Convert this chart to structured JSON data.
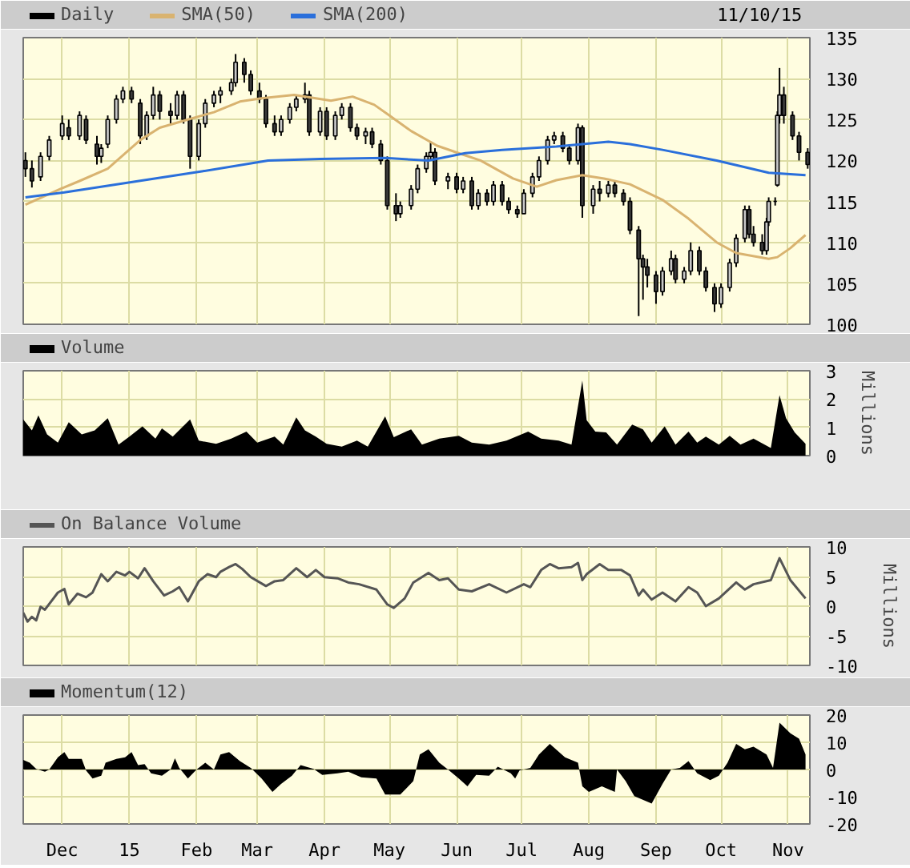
{
  "chart_data": [
    {
      "type": "candlestick",
      "legend": "top left",
      "annotations": [
        "11/10/15"
      ],
      "grid": true,
      "tick_labels": "y",
      "xlim": [
        "2014-11-13",
        "2015-11-11"
      ],
      "xticks": [
        {
          "value": "2014-12-01",
          "label": null
        },
        {
          "value": "2015-01-01",
          "label": null
        },
        {
          "value": "2015-02-01",
          "label": null
        },
        {
          "value": "2015-03-01",
          "label": null
        },
        {
          "value": "2015-04-01",
          "label": null
        },
        {
          "value": "2015-05-01",
          "label": null
        },
        {
          "value": "2015-06-01",
          "label": null
        },
        {
          "value": "2015-07-01",
          "label": null
        },
        {
          "value": "2015-08-01",
          "label": null
        },
        {
          "value": "2015-09-01",
          "label": null
        },
        {
          "value": "2015-10-01",
          "label": null
        },
        {
          "value": "2015-11-01",
          "label": null
        }
      ],
      "ylim": [
        100,
        135
      ],
      "yticks": [
        100,
        105,
        110,
        115,
        120,
        125,
        130,
        135
      ],
      "series": [
        {
          "name": "Daily",
          "type": "candlestick",
          "color": "#000000",
          "x": [
            "2014-11-14",
            "2014-11-17",
            "2014-11-21",
            "2014-11-25",
            "2014-12-01",
            "2014-12-04",
            "2014-12-09",
            "2014-12-12",
            "2014-12-17",
            "2014-12-19",
            "2014-12-22",
            "2014-12-26",
            "2014-12-29",
            "2015-01-02",
            "2015-01-06",
            "2015-01-09",
            "2015-01-12",
            "2015-01-15",
            "2015-01-20",
            "2015-01-23",
            "2015-01-26",
            "2015-01-29",
            "2015-02-02",
            "2015-02-05",
            "2015-02-09",
            "2015-02-12",
            "2015-02-17",
            "2015-02-19",
            "2015-02-23",
            "2015-02-26",
            "2015-03-02",
            "2015-03-05",
            "2015-03-09",
            "2015-03-12",
            "2015-03-16",
            "2015-03-19",
            "2015-03-23",
            "2015-03-25",
            "2015-03-30",
            "2015-04-02",
            "2015-04-06",
            "2015-04-09",
            "2015-04-13",
            "2015-04-16",
            "2015-04-20",
            "2015-04-23",
            "2015-04-27",
            "2015-04-30",
            "2015-05-04",
            "2015-05-06",
            "2015-05-11",
            "2015-05-14",
            "2015-05-18",
            "2015-05-20",
            "2015-05-22",
            "2015-05-28",
            "2015-06-01",
            "2015-06-04",
            "2015-06-08",
            "2015-06-11",
            "2015-06-15",
            "2015-06-18",
            "2015-06-22",
            "2015-06-25",
            "2015-06-29",
            "2015-07-02",
            "2015-07-06",
            "2015-07-09",
            "2015-07-13",
            "2015-07-16",
            "2015-07-20",
            "2015-07-23",
            "2015-07-27",
            "2015-07-29",
            "2015-08-03",
            "2015-08-06",
            "2015-08-10",
            "2015-08-13",
            "2015-08-17",
            "2015-08-20",
            "2015-08-24",
            "2015-08-26",
            "2015-08-28",
            "2015-09-01",
            "2015-09-04",
            "2015-09-08",
            "2015-09-10",
            "2015-09-14",
            "2015-09-17",
            "2015-09-21",
            "2015-09-24",
            "2015-09-28",
            "2015-10-01",
            "2015-10-05",
            "2015-10-08",
            "2015-10-12",
            "2015-10-14",
            "2015-10-16",
            "2015-10-20",
            "2015-10-22",
            "2015-10-23",
            "2015-10-26",
            "2015-10-27",
            "2015-10-28",
            "2015-10-30",
            "2015-11-03",
            "2015-11-06",
            "2015-11-10"
          ],
          "ohlc": [
            [
              120,
              121,
              118,
              119
            ],
            [
              119,
              120,
              116.7,
              117.5
            ],
            [
              118,
              121,
              117.5,
              120.5
            ],
            [
              120.5,
              123,
              120,
              122.5
            ],
            [
              123,
              125.5,
              122.5,
              124.5
            ],
            [
              124,
              125,
              122.5,
              123
            ],
            [
              123,
              126,
              122.5,
              125.5
            ],
            [
              125,
              125.5,
              122,
              122.5
            ],
            [
              122,
              123,
              119.5,
              120.5
            ],
            [
              120.5,
              122,
              119.7,
              121.5
            ],
            [
              122,
              125.5,
              121.5,
              125
            ],
            [
              125,
              128,
              124.5,
              127.5
            ],
            [
              127.5,
              129,
              127,
              128.5
            ],
            [
              128.5,
              129,
              127,
              127.5
            ],
            [
              127,
              127.5,
              122,
              123
            ],
            [
              123,
              126,
              122.5,
              125.5
            ],
            [
              125.5,
              129,
              125,
              128
            ],
            [
              128,
              128.5,
              125,
              126
            ],
            [
              126,
              127,
              124.5,
              125.5
            ],
            [
              125.5,
              128.5,
              125,
              128
            ],
            [
              128,
              128.5,
              124.5,
              125
            ],
            [
              125,
              125.5,
              119,
              120.5
            ],
            [
              120.5,
              125,
              120,
              124.5
            ],
            [
              124.5,
              127.5,
              124,
              127
            ],
            [
              127,
              128.5,
              126.5,
              128
            ],
            [
              128,
              129,
              127,
              128.5
            ],
            [
              128.5,
              130,
              128,
              129.5
            ],
            [
              129.5,
              133,
              129,
              132
            ],
            [
              132,
              132.5,
              129.5,
              130.5
            ],
            [
              130.5,
              131,
              128,
              128.5
            ],
            [
              128.5,
              129.5,
              127,
              127.5
            ],
            [
              127.5,
              128,
              124,
              124.5
            ],
            [
              124.5,
              125.5,
              123,
              123.5
            ],
            [
              123.5,
              125.5,
              123,
              125
            ],
            [
              125,
              127,
              124.5,
              126.5
            ],
            [
              126.5,
              128,
              126,
              127.5
            ],
            [
              127.5,
              129.5,
              127,
              128
            ],
            [
              128,
              128.5,
              123,
              123.5
            ],
            [
              123.5,
              126.5,
              123,
              126
            ],
            [
              126,
              126.5,
              122.5,
              123
            ],
            [
              123,
              126,
              122.5,
              125.5
            ],
            [
              125.5,
              127,
              125,
              126.5
            ],
            [
              126.5,
              127,
              123.5,
              124
            ],
            [
              124,
              124.5,
              122.5,
              123
            ],
            [
              123,
              124,
              122,
              123.5
            ],
            [
              123.5,
              124,
              121.5,
              122
            ],
            [
              122,
              122.5,
              119.5,
              120
            ],
            [
              120,
              120.5,
              114,
              114.5
            ],
            [
              114.5,
              116,
              112.6,
              113.5
            ],
            [
              113.5,
              115,
              113,
              114.5
            ],
            [
              114.5,
              117,
              114,
              116.5
            ],
            [
              116.5,
              119.5,
              116,
              119
            ],
            [
              119,
              121,
              118.5,
              120.5
            ],
            [
              120.5,
              122.3,
              120,
              121
            ],
            [
              121,
              121.5,
              117,
              117.5
            ],
            [
              117.5,
              118.5,
              116.5,
              118
            ],
            [
              118,
              118.5,
              116,
              116.5
            ],
            [
              116.5,
              118,
              116,
              117.5
            ],
            [
              117.5,
              118,
              114,
              114.5
            ],
            [
              114.5,
              116.5,
              114,
              116
            ],
            [
              116,
              116.5,
              114.5,
              115
            ],
            [
              115,
              117.5,
              114.5,
              117
            ],
            [
              117,
              117.5,
              114.5,
              115
            ],
            [
              115,
              115.5,
              113.5,
              114
            ],
            [
              114,
              114.5,
              113,
              113.5
            ],
            [
              113.5,
              116.5,
              113.5,
              116
            ],
            [
              116,
              118.5,
              115.5,
              118
            ],
            [
              118,
              120.5,
              117.5,
              120
            ],
            [
              120,
              123,
              119.5,
              122.5
            ],
            [
              122.5,
              123.5,
              122,
              123
            ],
            [
              123,
              123.5,
              121,
              121.5
            ],
            [
              121.5,
              122,
              119.5,
              120
            ],
            [
              120,
              124.5,
              119.5,
              124
            ],
            [
              124,
              124.3,
              113,
              114.5
            ],
            [
              114.5,
              117,
              113.5,
              116.5
            ],
            [
              116.5,
              117.5,
              115,
              116
            ],
            [
              116,
              117.5,
              115.5,
              117
            ],
            [
              117,
              117.5,
              115.5,
              116
            ],
            [
              116,
              116.5,
              114.5,
              115
            ],
            [
              115,
              115.5,
              111,
              111.5
            ],
            [
              111.5,
              112,
              101,
              108
            ],
            [
              108,
              108.5,
              103,
              107
            ],
            [
              107,
              108,
              104.5,
              106
            ],
            [
              106,
              106.5,
              102.5,
              104
            ],
            [
              104,
              107,
              103.5,
              106.5
            ],
            [
              106.5,
              109,
              106,
              108
            ],
            [
              108,
              108.5,
              105,
              105.5
            ],
            [
              105.5,
              107,
              105,
              106.5
            ],
            [
              106.5,
              110,
              106,
              109
            ],
            [
              109,
              109.5,
              106,
              106.5
            ],
            [
              106.5,
              107,
              104,
              104.5
            ],
            [
              104.5,
              105,
              101.5,
              102.5
            ],
            [
              102.5,
              105,
              102,
              104.5
            ],
            [
              104.5,
              108,
              104,
              107.5
            ],
            [
              107.5,
              111,
              107,
              110.5
            ],
            [
              110.5,
              114.5,
              110,
              114
            ],
            [
              114,
              114.5,
              110.5,
              111
            ],
            [
              111,
              112,
              109.5,
              110
            ],
            [
              110,
              111,
              108.5,
              109
            ],
            [
              109,
              113,
              108.5,
              112.5
            ],
            [
              112.5,
              115.5,
              112,
              115
            ],
            [
              115,
              115.5,
              114.5,
              115
            ],
            [
              117,
              126,
              116.8,
              125.5
            ],
            [
              125.5,
              131.3,
              124.5,
              128
            ],
            [
              128,
              129,
              124.5,
              125.5
            ],
            [
              125.5,
              126,
              122.5,
              123
            ],
            [
              123,
              123.5,
              120,
              121
            ],
            [
              121,
              121.5,
              119,
              119.5
            ]
          ]
        },
        {
          "name": "SMA(50)",
          "type": "line",
          "color": "#d9b370",
          "x": [
            "2014-11-14",
            "2014-11-30",
            "2014-12-09",
            "2014-12-22",
            "2015-01-06",
            "2015-01-15",
            "2015-01-28",
            "2015-02-09",
            "2015-02-21",
            "2015-03-03",
            "2015-03-18",
            "2015-04-04",
            "2015-04-14",
            "2015-04-24",
            "2015-05-01",
            "2015-05-11",
            "2015-05-23",
            "2015-06-03",
            "2015-06-12",
            "2015-06-27",
            "2015-07-08",
            "2015-07-17",
            "2015-07-29",
            "2015-08-08",
            "2015-08-20",
            "2015-09-04",
            "2015-09-16",
            "2015-09-29",
            "2015-10-08",
            "2015-10-23",
            "2015-10-27",
            "2015-11-02",
            "2015-11-09"
          ],
          "values": [
            114.6,
            116.5,
            117.5,
            119,
            122.5,
            124,
            125,
            125.9,
            127.2,
            127.6,
            128,
            127.3,
            127.8,
            126.8,
            125.5,
            123.6,
            121.8,
            120.8,
            120,
            117.8,
            116.8,
            117.6,
            118.2,
            117.8,
            117.1,
            115.2,
            112.9,
            110,
            108.7,
            108,
            108.2,
            109.3,
            110.9
          ]
        },
        {
          "name": "SMA(200)",
          "type": "line",
          "color": "#2a6fdb",
          "x": [
            "2014-11-14",
            "2014-12-02",
            "2015-01-03",
            "2015-02-04",
            "2015-03-06",
            "2015-03-30",
            "2015-04-29",
            "2015-05-19",
            "2015-06-05",
            "2015-06-22",
            "2015-07-17",
            "2015-08-10",
            "2015-08-20",
            "2015-09-04",
            "2015-09-29",
            "2015-10-23",
            "2015-11-09"
          ],
          "values": [
            115.5,
            116.1,
            117.4,
            118.7,
            120,
            120.2,
            120.3,
            120,
            120.9,
            121.3,
            121.7,
            122.3,
            122,
            121.3,
            120,
            118.5,
            118.2
          ]
        }
      ]
    },
    {
      "type": "area",
      "legend": "top left",
      "grid": true,
      "tick_labels": "y",
      "ylabel": "Millions",
      "xlim": [
        "2014-11-13",
        "2015-11-11"
      ],
      "xticks": [
        {
          "value": "2014-12-01",
          "label": null
        },
        {
          "value": "2015-01-01",
          "label": null
        },
        {
          "value": "2015-02-01",
          "label": null
        },
        {
          "value": "2015-03-01",
          "label": null
        },
        {
          "value": "2015-04-01",
          "label": null
        },
        {
          "value": "2015-05-01",
          "label": null
        },
        {
          "value": "2015-06-01",
          "label": null
        },
        {
          "value": "2015-07-01",
          "label": null
        },
        {
          "value": "2015-08-01",
          "label": null
        },
        {
          "value": "2015-09-01",
          "label": null
        },
        {
          "value": "2015-10-01",
          "label": null
        },
        {
          "value": "2015-11-01",
          "label": null
        }
      ],
      "ylim": [
        0,
        3
      ],
      "yticks": [
        0,
        1,
        2,
        3
      ],
      "series": [
        {
          "name": "Volume",
          "color": "#000000",
          "x": [
            "2014-11-13",
            "2014-11-17",
            "2014-11-20",
            "2014-11-24",
            "2014-11-29",
            "2014-12-04",
            "2014-12-10",
            "2014-12-16",
            "2014-12-22",
            "2014-12-27",
            "2015-01-01",
            "2015-01-07",
            "2015-01-13",
            "2015-01-16",
            "2015-01-21",
            "2015-01-29",
            "2015-02-02",
            "2015-02-10",
            "2015-02-17",
            "2015-02-24",
            "2015-03-01",
            "2015-03-09",
            "2015-03-13",
            "2015-03-19",
            "2015-03-23",
            "2015-03-28",
            "2015-04-02",
            "2015-04-09",
            "2015-04-16",
            "2015-04-21",
            "2015-04-29",
            "2015-05-03",
            "2015-05-11",
            "2015-05-16",
            "2015-05-24",
            "2015-06-02",
            "2015-06-08",
            "2015-06-16",
            "2015-06-24",
            "2015-07-04",
            "2015-07-10",
            "2015-07-18",
            "2015-07-24",
            "2015-07-29",
            "2015-07-31",
            "2015-08-04",
            "2015-08-09",
            "2015-08-14",
            "2015-08-21",
            "2015-08-26",
            "2015-08-30",
            "2015-09-05",
            "2015-09-10",
            "2015-09-16",
            "2015-09-20",
            "2015-09-24",
            "2015-09-30",
            "2015-10-05",
            "2015-10-10",
            "2015-10-16",
            "2015-10-24",
            "2015-10-28",
            "2015-10-31",
            "2015-11-04",
            "2015-11-09"
          ],
          "values": [
            1.28,
            0.89,
            1.42,
            0.75,
            0.46,
            1.18,
            0.75,
            0.89,
            1.32,
            0.39,
            0.67,
            1.03,
            0.6,
            0.96,
            0.67,
            1.28,
            0.53,
            0.42,
            0.6,
            0.85,
            0.46,
            0.67,
            0.39,
            1.35,
            0.89,
            0.67,
            0.42,
            0.32,
            0.53,
            0.32,
            1.39,
            0.65,
            0.93,
            0.39,
            0.6,
            0.7,
            0.46,
            0.39,
            0.53,
            0.85,
            0.6,
            0.53,
            0.39,
            2.65,
            1.25,
            0.85,
            0.82,
            0.39,
            1.1,
            0.93,
            0.46,
            1.03,
            0.39,
            0.85,
            0.46,
            0.67,
            0.39,
            0.7,
            0.39,
            0.6,
            0.27,
            2.14,
            1.32,
            0.82,
            0.42
          ]
        }
      ]
    },
    {
      "type": "line",
      "legend": "top left",
      "grid": true,
      "tick_labels": "y",
      "ylabel": "Millions",
      "xlim": [
        "2014-11-13",
        "2015-11-11"
      ],
      "xticks": [
        {
          "value": "2014-12-01",
          "label": null
        },
        {
          "value": "2015-01-01",
          "label": null
        },
        {
          "value": "2015-02-01",
          "label": null
        },
        {
          "value": "2015-03-01",
          "label": null
        },
        {
          "value": "2015-04-01",
          "label": null
        },
        {
          "value": "2015-05-01",
          "label": null
        },
        {
          "value": "2015-06-01",
          "label": null
        },
        {
          "value": "2015-07-01",
          "label": null
        },
        {
          "value": "2015-08-01",
          "label": null
        },
        {
          "value": "2015-09-01",
          "label": null
        },
        {
          "value": "2015-10-01",
          "label": null
        },
        {
          "value": "2015-11-01",
          "label": null
        }
      ],
      "ylim": [
        -10,
        10
      ],
      "yticks": [
        -10,
        -5,
        0,
        5,
        10
      ],
      "series": [
        {
          "name": "On Balance Volume",
          "color": "#555555",
          "x": [
            "2014-11-13",
            "2014-11-15",
            "2014-11-17",
            "2014-11-19",
            "2014-11-21",
            "2014-11-23",
            "2014-11-29",
            "2014-12-02",
            "2014-12-04",
            "2014-12-08",
            "2014-12-12",
            "2014-12-15",
            "2014-12-19",
            "2014-12-22",
            "2014-12-26",
            "2014-12-30",
            "2015-01-01",
            "2015-01-05",
            "2015-01-08",
            "2015-01-12",
            "2015-01-17",
            "2015-01-21",
            "2015-01-24",
            "2015-01-28",
            "2015-02-02",
            "2015-02-06",
            "2015-02-10",
            "2015-02-12",
            "2015-02-16",
            "2015-02-19",
            "2015-02-22",
            "2015-02-26",
            "2015-03-05",
            "2015-03-09",
            "2015-03-13",
            "2015-03-19",
            "2015-03-24",
            "2015-03-28",
            "2015-04-01",
            "2015-04-07",
            "2015-04-12",
            "2015-04-17",
            "2015-04-25",
            "2015-04-30",
            "2015-05-03",
            "2015-05-08",
            "2015-05-12",
            "2015-05-19",
            "2015-05-24",
            "2015-05-28",
            "2015-06-02",
            "2015-06-08",
            "2015-06-16",
            "2015-06-24",
            "2015-07-02",
            "2015-07-05",
            "2015-07-10",
            "2015-07-14",
            "2015-07-18",
            "2015-07-24",
            "2015-07-27",
            "2015-07-29",
            "2015-07-31",
            "2015-08-06",
            "2015-08-10",
            "2015-08-16",
            "2015-08-20",
            "2015-08-24",
            "2015-08-26",
            "2015-08-30",
            "2015-09-04",
            "2015-09-10",
            "2015-09-16",
            "2015-09-20",
            "2015-09-24",
            "2015-09-30",
            "2015-10-08",
            "2015-10-12",
            "2015-10-16",
            "2015-10-24",
            "2015-10-28",
            "2015-11-02",
            "2015-11-09"
          ],
          "values": [
            -1.1,
            -2.6,
            -1.8,
            -2.4,
            -0.1,
            -0.6,
            2.3,
            2.9,
            0.3,
            2.1,
            1.5,
            2.3,
            5.4,
            4.2,
            5.8,
            5.2,
            5.8,
            4.7,
            6.4,
            4.2,
            1.8,
            2.5,
            3.2,
            0.8,
            4.2,
            5.4,
            4.9,
            5.8,
            6.6,
            7.1,
            6.3,
            4.9,
            3.4,
            4.2,
            4.4,
            6.4,
            4.9,
            6.1,
            4.9,
            4.7,
            4,
            3.7,
            2.8,
            0.3,
            -0.3,
            1.3,
            4,
            5.6,
            4.4,
            4.7,
            2.8,
            2.5,
            3.7,
            2.3,
            3.7,
            3.2,
            6.1,
            7.1,
            6.4,
            6.6,
            7.3,
            4.4,
            5.4,
            7.1,
            6.1,
            6.1,
            5.2,
            1.8,
            2.8,
            1.1,
            2.3,
            0.8,
            3.2,
            2.3,
            0,
            1.3,
            4,
            2.8,
            3.7,
            4.4,
            8.1,
            4.4,
            1.3
          ]
        }
      ]
    },
    {
      "type": "area",
      "legend": "top left",
      "grid": true,
      "xlim": [
        "2014-11-13",
        "2015-11-11"
      ],
      "xticks": [
        {
          "value": "2014-12-01",
          "label": "Dec"
        },
        {
          "value": "2015-01-01",
          "label": "15"
        },
        {
          "value": "2015-02-01",
          "label": "Feb"
        },
        {
          "value": "2015-03-01",
          "label": "Mar"
        },
        {
          "value": "2015-04-01",
          "label": "Apr"
        },
        {
          "value": "2015-05-01",
          "label": "May"
        },
        {
          "value": "2015-06-01",
          "label": "Jun"
        },
        {
          "value": "2015-07-01",
          "label": "Jul"
        },
        {
          "value": "2015-08-01",
          "label": "Aug"
        },
        {
          "value": "2015-09-01",
          "label": "Sep"
        },
        {
          "value": "2015-10-01",
          "label": "Oct"
        },
        {
          "value": "2015-11-01",
          "label": "Nov"
        }
      ],
      "ylim": [
        -20,
        20
      ],
      "yticks": [
        -20,
        -10,
        0,
        10,
        20
      ],
      "series": [
        {
          "name": "Momentum(12)",
          "color": "#000000",
          "x": [
            "2014-11-13",
            "2014-11-16",
            "2014-11-19",
            "2014-11-23",
            "2014-11-25",
            "2014-11-29",
            "2014-12-02",
            "2014-12-04",
            "2014-12-10",
            "2014-12-12",
            "2014-12-15",
            "2014-12-19",
            "2014-12-21",
            "2014-12-26",
            "2014-12-30",
            "2015-01-02",
            "2015-01-05",
            "2015-01-08",
            "2015-01-11",
            "2015-01-16",
            "2015-01-20",
            "2015-01-22",
            "2015-01-24",
            "2015-01-28",
            "2015-02-01",
            "2015-02-05",
            "2015-02-09",
            "2015-02-12",
            "2015-02-16",
            "2015-02-21",
            "2015-02-26",
            "2015-03-03",
            "2015-03-08",
            "2015-03-12",
            "2015-03-17",
            "2015-03-21",
            "2015-03-27",
            "2015-03-31",
            "2015-04-07",
            "2015-04-12",
            "2015-04-18",
            "2015-04-25",
            "2015-04-29",
            "2015-05-06",
            "2015-05-12",
            "2015-05-15",
            "2015-05-19",
            "2015-05-24",
            "2015-05-28",
            "2015-06-02",
            "2015-06-06",
            "2015-06-10",
            "2015-06-16",
            "2015-06-20",
            "2015-06-26",
            "2015-06-28",
            "2015-06-30",
            "2015-07-05",
            "2015-07-09",
            "2015-07-14",
            "2015-07-21",
            "2015-07-27",
            "2015-07-29",
            "2015-08-01",
            "2015-08-07",
            "2015-08-13",
            "2015-08-14",
            "2015-08-18",
            "2015-08-22",
            "2015-08-30",
            "2015-09-04",
            "2015-09-08",
            "2015-09-12",
            "2015-09-16",
            "2015-09-20",
            "2015-09-26",
            "2015-09-30",
            "2015-10-04",
            "2015-10-08",
            "2015-10-12",
            "2015-10-16",
            "2015-10-22",
            "2015-10-25",
            "2015-10-28",
            "2015-11-02",
            "2015-11-06",
            "2015-11-09"
          ],
          "values": [
            3.5,
            2.5,
            0.2,
            -0.8,
            0,
            4.5,
            6.4,
            3.9,
            3.9,
            -0.4,
            -3.3,
            -2.3,
            2.5,
            3.9,
            4.5,
            6.4,
            1.6,
            2,
            -1.4,
            -2.3,
            0,
            4.1,
            0.6,
            -3.3,
            0,
            2.5,
            0,
            5.5,
            6.4,
            3.1,
            0.6,
            -3.3,
            -8.2,
            -5.3,
            -2.3,
            1.6,
            0.2,
            -2,
            -1.4,
            -0.8,
            -2.9,
            -3.3,
            -9.2,
            -9.2,
            -4.3,
            5.5,
            7.4,
            2.5,
            0,
            -3.3,
            -6.2,
            -2,
            -2.3,
            1,
            -1.4,
            -3.3,
            -0.4,
            0.6,
            5.5,
            9.4,
            4.5,
            2.5,
            -6.2,
            -8.2,
            -6.2,
            -8.2,
            0,
            -4.3,
            -9.8,
            -12.5,
            -5.3,
            0,
            0.6,
            3.1,
            -1.4,
            -3.9,
            -2.3,
            2.5,
            9.4,
            7.4,
            8.4,
            5.5,
            0.6,
            17.2,
            13.3,
            11.3,
            5.5
          ]
        }
      ]
    }
  ]
}
